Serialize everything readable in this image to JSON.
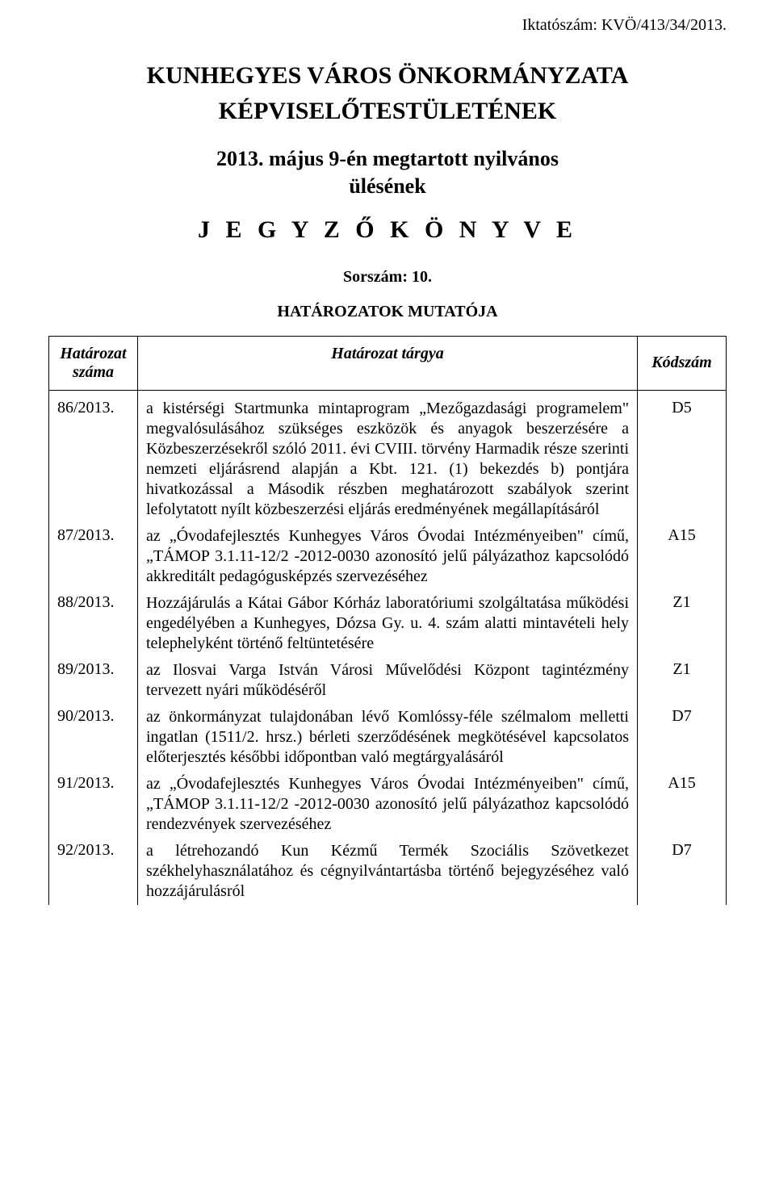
{
  "filing_number": "Iktatószám: KVÖ/413/34/2013.",
  "title_line1": "KUNHEGYES VÁROS ÖNKORMÁNYZATA",
  "title_line2": "KÉPVISELŐTESTÜLETÉNEK",
  "session_line1": "2013. május 9-én megtartott nyilvános",
  "session_line2": "ülésének",
  "minutes_title": "J E G Y Z Ő K Ö N Y V E",
  "serial": "Sorszám: 10.",
  "decisions_heading": "HATÁROZATOK MUTATÓJA",
  "table": {
    "columns": {
      "num_line1": "Határozat",
      "num_line2": "száma",
      "subject": "Határozat tárgya",
      "code": "Kódszám"
    },
    "rows": [
      {
        "num": "86/2013.",
        "subject": "a kistérségi Startmunka mintaprogram „Mezőgazdasági programelem\" megvalósulásához szükséges eszközök és anyagok beszerzésére a Közbeszerzésekről szóló 2011. évi CVIII. törvény Harmadik része szerinti nemzeti eljárásrend alapján a Kbt. 121. (1) bekezdés b) pontjára hivatkozással a Második részben meghatározott szabályok szerint lefolytatott nyílt közbeszerzési eljárás eredményének megállapításáról",
        "code": "D5"
      },
      {
        "num": "87/2013.",
        "subject": "az „Óvodafejlesztés Kunhegyes Város Óvodai Intézményeiben\" című, „TÁMOP 3.1.11-12/2 -2012-0030 azonosító jelű pályázathoz kapcsolódó akkreditált pedagógusképzés szervezéséhez",
        "code": "A15"
      },
      {
        "num": "88/2013.",
        "subject": "Hozzájárulás a Kátai Gábor Kórház laboratóriumi szolgáltatása működési engedélyében a Kunhegyes, Dózsa Gy. u. 4. szám alatti mintavételi hely telephelyként történő feltüntetésére",
        "code": "Z1"
      },
      {
        "num": "89/2013.",
        "subject": "az Ilosvai Varga István Városi Művelődési Központ tagintézmény tervezett nyári működéséről",
        "code": "Z1"
      },
      {
        "num": "90/2013.",
        "subject": "az önkormányzat tulajdonában lévő Komlóssy-féle szélmalom melletti ingatlan (1511/2. hrsz.) bérleti szerződésének megkötésével kapcsolatos előterjesztés későbbi időpontban való megtárgyalásáról",
        "code": "D7"
      },
      {
        "num": "91/2013.",
        "subject": "az „Óvodafejlesztés Kunhegyes Város Óvodai Intézményeiben\" című, „TÁMOP 3.1.11-12/2 -2012-0030 azonosító jelű pályázathoz kapcsolódó rendezvények szervezéséhez",
        "code": "A15"
      },
      {
        "num": "92/2013.",
        "subject": "a létrehozandó Kun Kézmű Termék Szociális Szövetkezet székhelyhasználatához és cégnyilvántartásba történő bejegyzéséhez való hozzájárulásról",
        "code": "D7"
      }
    ]
  }
}
